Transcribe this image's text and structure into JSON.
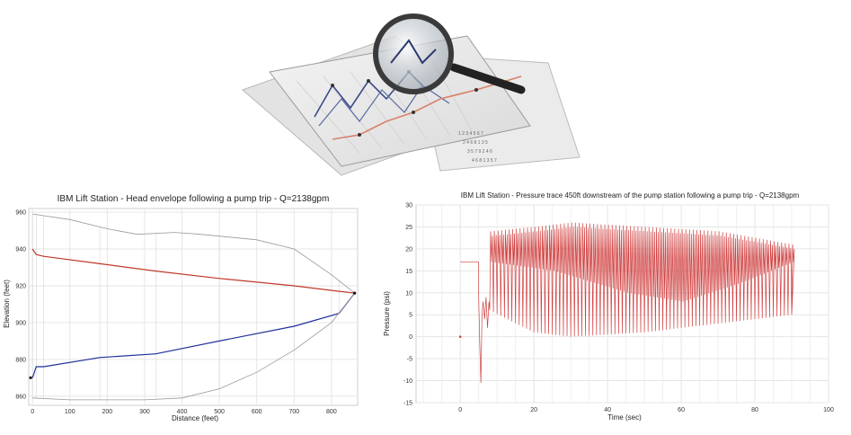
{
  "colors": {
    "max_envelope": "#c0392b",
    "min_envelope": "#1f2f9a",
    "ground": "#999999",
    "pressure": "#d04040",
    "grid": "#e6e6e6"
  },
  "hero": {
    "icon": "magnifier-over-charts-icon"
  },
  "chart_data": [
    {
      "type": "line",
      "title": "IBM Lift Station - Head envelope following a pump trip - Q=2138gpm",
      "xlabel": "Distance (feet)",
      "ylabel": "Elevation (feet)",
      "xlim": [
        -10,
        870
      ],
      "ylim": [
        855,
        962
      ],
      "xticks": [
        0,
        100,
        200,
        300,
        400,
        500,
        600,
        700,
        800
      ],
      "yticks": [
        860,
        880,
        900,
        920,
        940,
        960
      ],
      "grid": true,
      "series": [
        {
          "key": "max",
          "x": [
            0,
            10,
            30,
            180,
            330,
            500,
            700,
            820,
            862
          ],
          "y": [
            940,
            937,
            936,
            932,
            928,
            924,
            920,
            917,
            916
          ]
        },
        {
          "key": "min",
          "x": [
            0,
            10,
            30,
            180,
            330,
            500,
            700,
            820,
            862
          ],
          "y": [
            870,
            876,
            876,
            881,
            883,
            890,
            898,
            905,
            916
          ]
        },
        {
          "key": "upper-profile",
          "x": [
            0,
            100,
            200,
            280,
            380,
            450,
            600,
            700,
            800,
            862
          ],
          "y": [
            959,
            956,
            951,
            948,
            949,
            948,
            945,
            940,
            926,
            916
          ]
        },
        {
          "key": "lower-profile",
          "x": [
            0,
            100,
            200,
            300,
            400,
            500,
            600,
            700,
            800,
            862
          ],
          "y": [
            859,
            858,
            858,
            858,
            859,
            864,
            873,
            885,
            900,
            916
          ]
        }
      ],
      "points": [
        {
          "x": -5,
          "y": 870
        },
        {
          "x": 862,
          "y": 916
        }
      ]
    },
    {
      "type": "line",
      "title": "IBM Lift Station - Pressure trace 450ft downstream of the pump station following a pump trip - Q=2138gpm",
      "xlabel": "Time (sec)",
      "ylabel": "Pressure (psi)",
      "xlim": [
        -12,
        100
      ],
      "ylim": [
        -15,
        30
      ],
      "xticks": [
        0,
        20,
        40,
        60,
        80,
        100
      ],
      "yticks": [
        -15,
        -10,
        -5,
        0,
        5,
        10,
        15,
        20,
        25,
        30
      ],
      "grid": true,
      "series": [
        {
          "key": "pressure",
          "steady": 17,
          "trip_time": 5,
          "min_dip": -10.5,
          "oscillation_start": 8,
          "end_time": 90,
          "oscillation_period": 1,
          "peak_high": [
            [
              8,
              24
            ],
            [
              20,
              25
            ],
            [
              30,
              26
            ],
            [
              50,
              25
            ],
            [
              70,
              24
            ],
            [
              90,
              21
            ]
          ],
          "peak_low": [
            [
              8,
              6
            ],
            [
              20,
              1
            ],
            [
              30,
              0
            ],
            [
              50,
              1
            ],
            [
              70,
              3
            ],
            [
              90,
              5
            ]
          ],
          "mid_crossing": [
            [
              8,
              17
            ],
            [
              25,
              15
            ],
            [
              45,
              10
            ],
            [
              60,
              8
            ],
            [
              75,
              12
            ],
            [
              90,
              17
            ]
          ]
        }
      ],
      "points": [
        {
          "x": 0,
          "y": 0
        }
      ]
    }
  ]
}
